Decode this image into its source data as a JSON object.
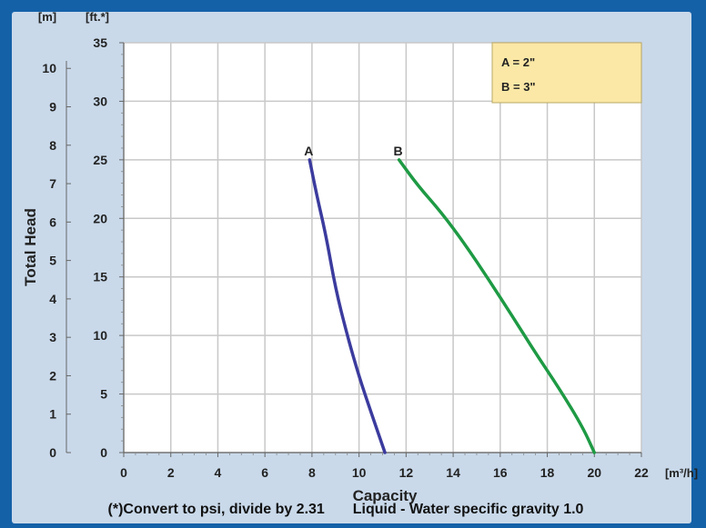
{
  "colors": {
    "frame": "#1461a8",
    "panel": "#c9d9ea",
    "plot_bg": "#ffffff",
    "grid": "#c8c8c8",
    "legend_bg": "#fbe8a6",
    "series_a": "#3b3b9e",
    "series_b": "#1e9a44"
  },
  "chart_data": {
    "type": "line",
    "title": "",
    "xlabel": "Capacity",
    "x_unit": "[m³/h]",
    "ylabel": "Total Head",
    "y_unit_ft": "[ft.*]",
    "y_unit_m": "[m]",
    "xlim": [
      0,
      22
    ],
    "ylim_ft": [
      0,
      35
    ],
    "ylim_m_ticks": [
      0,
      1,
      2,
      3,
      4,
      5,
      6,
      7,
      8,
      9,
      10
    ],
    "x_ticks": [
      0,
      2,
      4,
      6,
      8,
      10,
      12,
      14,
      16,
      18,
      20,
      22
    ],
    "y_ticks_ft": [
      0,
      5,
      10,
      15,
      20,
      25,
      30,
      35
    ],
    "grid": true,
    "legend_position": "top-right",
    "legend": [
      "A = 2\"",
      "B = 3\""
    ],
    "series": [
      {
        "name": "A",
        "x": [
          7.9,
          8.2,
          8.6,
          9.0,
          9.5,
          10.0,
          10.5,
          11.1
        ],
        "y": [
          25,
          22,
          18.5,
          14,
          10,
          6.5,
          3.5,
          0
        ]
      },
      {
        "name": "B",
        "x": [
          11.7,
          12.5,
          13.5,
          14.5,
          15.5,
          16.5,
          17.5,
          18.5,
          19.5,
          20.0
        ],
        "y": [
          25,
          22.8,
          20.5,
          17.8,
          14.8,
          11.7,
          8.5,
          5.5,
          2.2,
          0
        ]
      }
    ]
  },
  "footnote": {
    "left": "(*)Convert to psi, divide by 2.31",
    "right": "Liquid - Water specific gravity 1.0"
  }
}
